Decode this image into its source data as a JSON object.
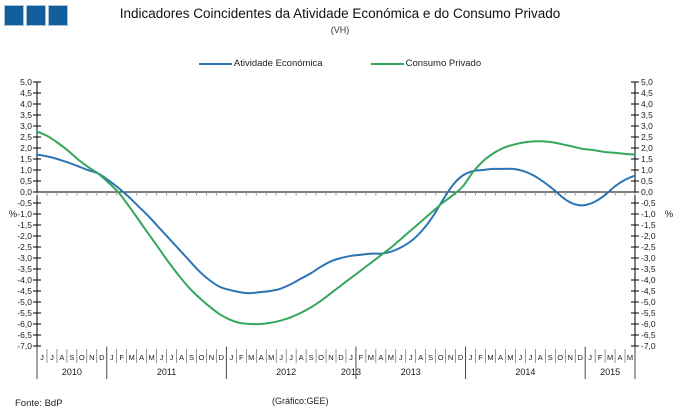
{
  "header": {
    "title": "Indicadores Coincidentes da Atividade Económica e do Consumo Privado",
    "subtitle": "(VH)",
    "logo_color": "#135f9e"
  },
  "legend": [
    {
      "label": "Atividade Económica",
      "color": "#2e74b5"
    },
    {
      "label": "Consumo Privado",
      "color": "#35a75c"
    }
  ],
  "footer": {
    "source": "Fonte: BdP",
    "credit": "(Gráfico:GEE)"
  },
  "chart_data": {
    "type": "line",
    "title": "Indicadores Coincidentes da Atividade Económica e do Consumo Privado",
    "subtitle": "(VH)",
    "ylabel": "%",
    "ylim": [
      -7.0,
      5.0
    ],
    "ytick_step": 0.5,
    "grid": false,
    "legend_position": "top",
    "x_months": [
      "J",
      "J",
      "A",
      "S",
      "O",
      "N",
      "D",
      "J",
      "F",
      "M",
      "A",
      "M",
      "J",
      "J",
      "A",
      "S",
      "O",
      "N",
      "D",
      "J",
      "F",
      "M",
      "A",
      "M",
      "J",
      "J",
      "A",
      "S",
      "O",
      "N",
      "D",
      "J",
      "F",
      "M",
      "A",
      "M",
      "J",
      "J",
      "A",
      "S",
      "O",
      "N",
      "D",
      "J",
      "F",
      "M",
      "A",
      "M",
      "J",
      "J",
      "A",
      "S",
      "O",
      "N",
      "D",
      "J",
      "F",
      "M",
      "A",
      "M"
    ],
    "x_years": [
      {
        "label": "2010",
        "start": 0,
        "count": 7
      },
      {
        "label": "2011",
        "start": 7,
        "count": 12
      },
      {
        "label": "2012",
        "start": 19,
        "count": 12
      },
      {
        "label": "2013",
        "start": 31,
        "count": 1
      },
      {
        "label": "2013",
        "start": 32,
        "count": 11
      },
      {
        "label": "2014",
        "start": 43,
        "count": 12
      },
      {
        "label": "2015",
        "start": 55,
        "count": 5
      }
    ],
    "year_dividers": [
      7,
      19,
      32,
      43,
      55
    ],
    "series": [
      {
        "name": "Atividade Económica",
        "color": "#2e74b5",
        "values": [
          1.7,
          1.62,
          1.5,
          1.35,
          1.18,
          1.0,
          0.85,
          0.55,
          0.2,
          -0.2,
          -0.65,
          -1.1,
          -1.6,
          -2.1,
          -2.6,
          -3.1,
          -3.6,
          -4.0,
          -4.3,
          -4.45,
          -4.55,
          -4.6,
          -4.55,
          -4.5,
          -4.4,
          -4.2,
          -3.95,
          -3.7,
          -3.4,
          -3.15,
          -3.0,
          -2.9,
          -2.85,
          -2.8,
          -2.8,
          -2.7,
          -2.5,
          -2.2,
          -1.75,
          -1.15,
          -0.4,
          0.3,
          0.75,
          0.95,
          1.0,
          1.05,
          1.05,
          1.05,
          0.95,
          0.75,
          0.45,
          0.1,
          -0.3,
          -0.55,
          -0.6,
          -0.45,
          -0.15,
          0.25,
          0.55,
          0.75
        ]
      },
      {
        "name": "Consumo Privado",
        "color": "#35a75c",
        "values": [
          2.75,
          2.55,
          2.25,
          1.9,
          1.5,
          1.15,
          0.85,
          0.45,
          0.0,
          -0.6,
          -1.25,
          -1.9,
          -2.55,
          -3.2,
          -3.8,
          -4.35,
          -4.8,
          -5.2,
          -5.55,
          -5.8,
          -5.95,
          -6.0,
          -6.0,
          -5.95,
          -5.85,
          -5.7,
          -5.5,
          -5.25,
          -4.95,
          -4.6,
          -4.25,
          -3.9,
          -3.55,
          -3.2,
          -2.85,
          -2.5,
          -2.1,
          -1.7,
          -1.3,
          -0.9,
          -0.5,
          -0.15,
          0.25,
          0.9,
          1.4,
          1.75,
          2.0,
          2.15,
          2.25,
          2.3,
          2.3,
          2.25,
          2.15,
          2.05,
          1.95,
          1.9,
          1.82,
          1.78,
          1.73,
          1.7
        ]
      }
    ]
  }
}
